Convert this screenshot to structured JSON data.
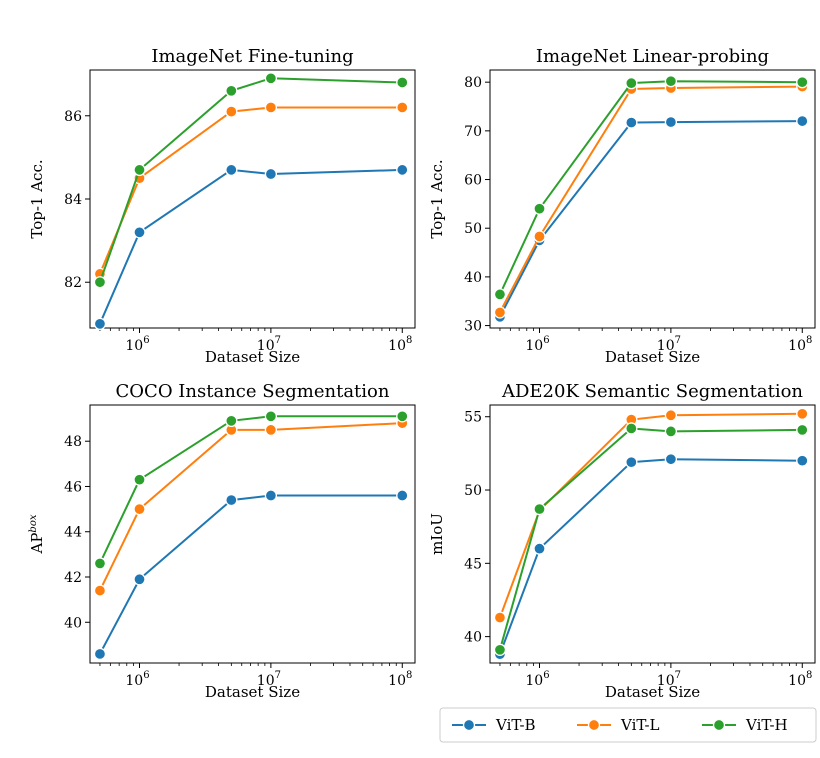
{
  "series_styles": [
    {
      "name": "ViT-B",
      "color": "#1f77b4"
    },
    {
      "name": "ViT-L",
      "color": "#ff7f0e"
    },
    {
      "name": "ViT-H",
      "color": "#2ca02c"
    }
  ],
  "chart_data": [
    {
      "type": "line",
      "title": "ImageNet Fine-tuning",
      "xlabel": "Dataset Size",
      "ylabel": "Top-1 Acc.",
      "xscale": "log",
      "x": [
        500000,
        1000000,
        5000000,
        10000000,
        100000000
      ],
      "xlim": [
        420000,
        125000000
      ],
      "ylim": [
        80.9,
        87.1
      ],
      "yticks": [
        82,
        84,
        86
      ],
      "series": [
        {
          "name": "ViT-B",
          "values": [
            81.0,
            83.2,
            84.7,
            84.6,
            84.7
          ]
        },
        {
          "name": "ViT-L",
          "values": [
            82.2,
            84.5,
            86.1,
            86.2,
            86.2
          ]
        },
        {
          "name": "ViT-H",
          "values": [
            82.0,
            84.7,
            86.6,
            86.9,
            86.8
          ]
        }
      ]
    },
    {
      "type": "line",
      "title": "ImageNet Linear-probing",
      "xlabel": "Dataset Size",
      "ylabel": "Top-1 Acc.",
      "xscale": "log",
      "x": [
        500000,
        1000000,
        5000000,
        10000000,
        100000000
      ],
      "xlim": [
        420000,
        125000000
      ],
      "ylim": [
        29.5,
        82.5
      ],
      "yticks": [
        30,
        40,
        50,
        60,
        70,
        80
      ],
      "series": [
        {
          "name": "ViT-B",
          "values": [
            31.8,
            47.5,
            71.7,
            71.8,
            72.0
          ]
        },
        {
          "name": "ViT-L",
          "values": [
            32.7,
            48.3,
            78.6,
            78.8,
            79.1
          ]
        },
        {
          "name": "ViT-H",
          "values": [
            36.4,
            54.0,
            79.8,
            80.2,
            80.0
          ]
        }
      ]
    },
    {
      "type": "line",
      "title": "COCO Instance Segmentation",
      "xlabel": "Dataset Size",
      "ylabel": "AP",
      "ylabel_sup": "box",
      "xscale": "log",
      "x": [
        500000,
        1000000,
        5000000,
        10000000,
        100000000
      ],
      "xlim": [
        420000,
        125000000
      ],
      "ylim": [
        38.2,
        49.6
      ],
      "yticks": [
        40,
        42,
        44,
        46,
        48
      ],
      "series": [
        {
          "name": "ViT-B",
          "values": [
            38.6,
            41.9,
            45.4,
            45.6,
            45.6
          ]
        },
        {
          "name": "ViT-L",
          "values": [
            41.4,
            45.0,
            48.5,
            48.5,
            48.8
          ]
        },
        {
          "name": "ViT-H",
          "values": [
            42.6,
            46.3,
            48.9,
            49.1,
            49.1
          ]
        }
      ]
    },
    {
      "type": "line",
      "title": "ADE20K Semantic Segmentation",
      "xlabel": "Dataset Size",
      "ylabel": "mIoU",
      "xscale": "log",
      "x": [
        500000,
        1000000,
        5000000,
        10000000,
        100000000
      ],
      "xlim": [
        420000,
        125000000
      ],
      "ylim": [
        38.2,
        55.8
      ],
      "yticks": [
        40,
        45,
        50,
        55
      ],
      "series": [
        {
          "name": "ViT-B",
          "values": [
            38.8,
            46.0,
            51.9,
            52.1,
            52.0
          ]
        },
        {
          "name": "ViT-L",
          "values": [
            41.3,
            48.6,
            54.8,
            55.1,
            55.2
          ]
        },
        {
          "name": "ViT-H",
          "values": [
            39.1,
            48.7,
            54.2,
            54.0,
            54.1
          ]
        }
      ]
    }
  ],
  "x_tick_labels": [
    {
      "value": 1000000,
      "base": "10",
      "exp": "6"
    },
    {
      "value": 10000000,
      "base": "10",
      "exp": "7"
    },
    {
      "value": 100000000,
      "base": "10",
      "exp": "8"
    }
  ],
  "legend": {
    "placement": "bottom-right",
    "items": [
      "ViT-B",
      "ViT-L",
      "ViT-H"
    ]
  }
}
